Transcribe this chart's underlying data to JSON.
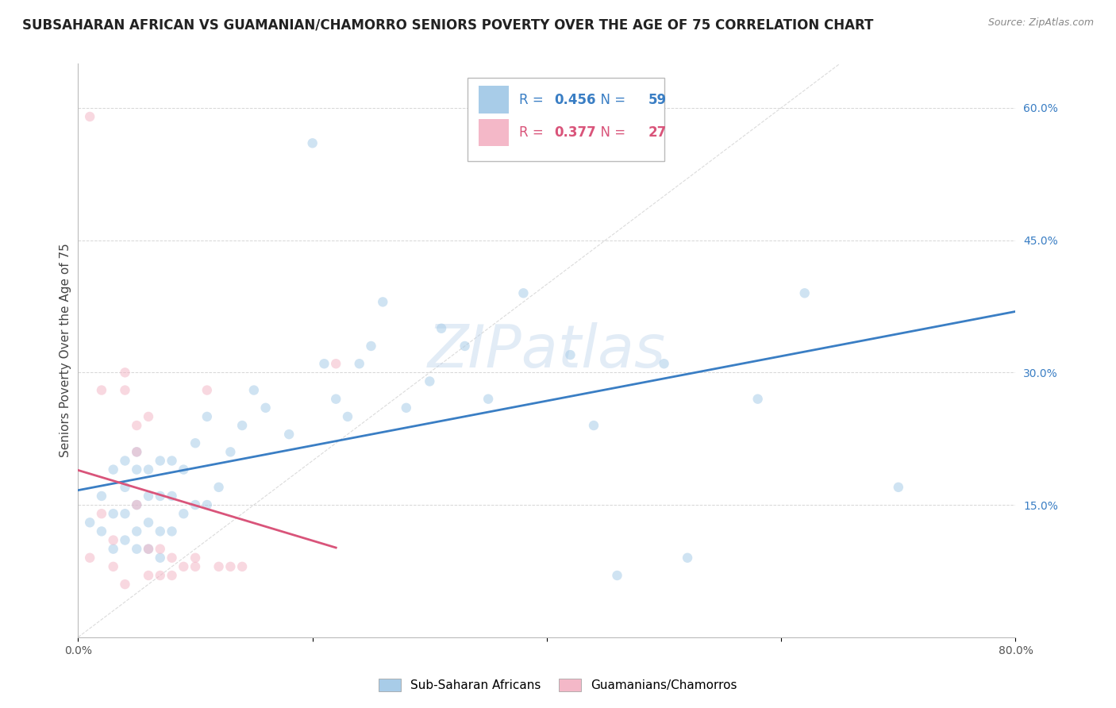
{
  "title": "SUBSAHARAN AFRICAN VS GUAMANIAN/CHAMORRO SENIORS POVERTY OVER THE AGE OF 75 CORRELATION CHART",
  "source": "Source: ZipAtlas.com",
  "ylabel": "Seniors Poverty Over the Age of 75",
  "xlim": [
    0.0,
    0.8
  ],
  "ylim": [
    0.0,
    0.65
  ],
  "xticks": [
    0.0,
    0.2,
    0.4,
    0.6,
    0.8
  ],
  "xticklabels": [
    "0.0%",
    "",
    "",
    "",
    "80.0%"
  ],
  "yticks_right": [
    0.15,
    0.3,
    0.45,
    0.6
  ],
  "ytick_labels_right": [
    "15.0%",
    "30.0%",
    "45.0%",
    "60.0%"
  ],
  "blue_R": 0.456,
  "blue_N": 59,
  "pink_R": 0.377,
  "pink_N": 27,
  "blue_color": "#a8cce8",
  "pink_color": "#f4b8c8",
  "blue_line_color": "#3a7ec4",
  "pink_line_color": "#d9547a",
  "diagonal_color": "#cccccc",
  "watermark_color": "#b8d0ea",
  "grid_color": "#cccccc",
  "background_color": "#ffffff",
  "title_fontsize": 12,
  "axis_label_fontsize": 11,
  "tick_fontsize": 10,
  "legend_fontsize": 12,
  "scatter_size": 80,
  "scatter_alpha": 0.55,
  "blue_scatter_x": [
    0.01,
    0.02,
    0.02,
    0.03,
    0.03,
    0.03,
    0.04,
    0.04,
    0.04,
    0.04,
    0.05,
    0.05,
    0.05,
    0.05,
    0.05,
    0.06,
    0.06,
    0.06,
    0.06,
    0.07,
    0.07,
    0.07,
    0.07,
    0.08,
    0.08,
    0.08,
    0.09,
    0.09,
    0.1,
    0.1,
    0.11,
    0.11,
    0.12,
    0.13,
    0.14,
    0.15,
    0.16,
    0.18,
    0.2,
    0.21,
    0.22,
    0.23,
    0.24,
    0.25,
    0.26,
    0.28,
    0.3,
    0.31,
    0.33,
    0.35,
    0.38,
    0.42,
    0.44,
    0.46,
    0.5,
    0.52,
    0.58,
    0.62,
    0.7
  ],
  "blue_scatter_y": [
    0.13,
    0.12,
    0.16,
    0.1,
    0.14,
    0.19,
    0.11,
    0.14,
    0.17,
    0.2,
    0.1,
    0.12,
    0.15,
    0.19,
    0.21,
    0.1,
    0.13,
    0.16,
    0.19,
    0.09,
    0.12,
    0.16,
    0.2,
    0.12,
    0.16,
    0.2,
    0.14,
    0.19,
    0.15,
    0.22,
    0.15,
    0.25,
    0.17,
    0.21,
    0.24,
    0.28,
    0.26,
    0.23,
    0.56,
    0.31,
    0.27,
    0.25,
    0.31,
    0.33,
    0.38,
    0.26,
    0.29,
    0.35,
    0.33,
    0.27,
    0.39,
    0.32,
    0.24,
    0.07,
    0.31,
    0.09,
    0.27,
    0.39,
    0.17
  ],
  "pink_scatter_x": [
    0.01,
    0.01,
    0.02,
    0.02,
    0.03,
    0.03,
    0.04,
    0.04,
    0.04,
    0.05,
    0.05,
    0.05,
    0.06,
    0.06,
    0.06,
    0.07,
    0.07,
    0.08,
    0.08,
    0.09,
    0.1,
    0.1,
    0.11,
    0.12,
    0.13,
    0.14,
    0.22
  ],
  "pink_scatter_y": [
    0.09,
    0.59,
    0.14,
    0.28,
    0.08,
    0.11,
    0.28,
    0.3,
    0.06,
    0.15,
    0.21,
    0.24,
    0.07,
    0.1,
    0.25,
    0.07,
    0.1,
    0.07,
    0.09,
    0.08,
    0.08,
    0.09,
    0.28,
    0.08,
    0.08,
    0.08,
    0.31
  ],
  "blue_legend_label": "Sub-Saharan Africans",
  "pink_legend_label": "Guamanians/Chamorros"
}
